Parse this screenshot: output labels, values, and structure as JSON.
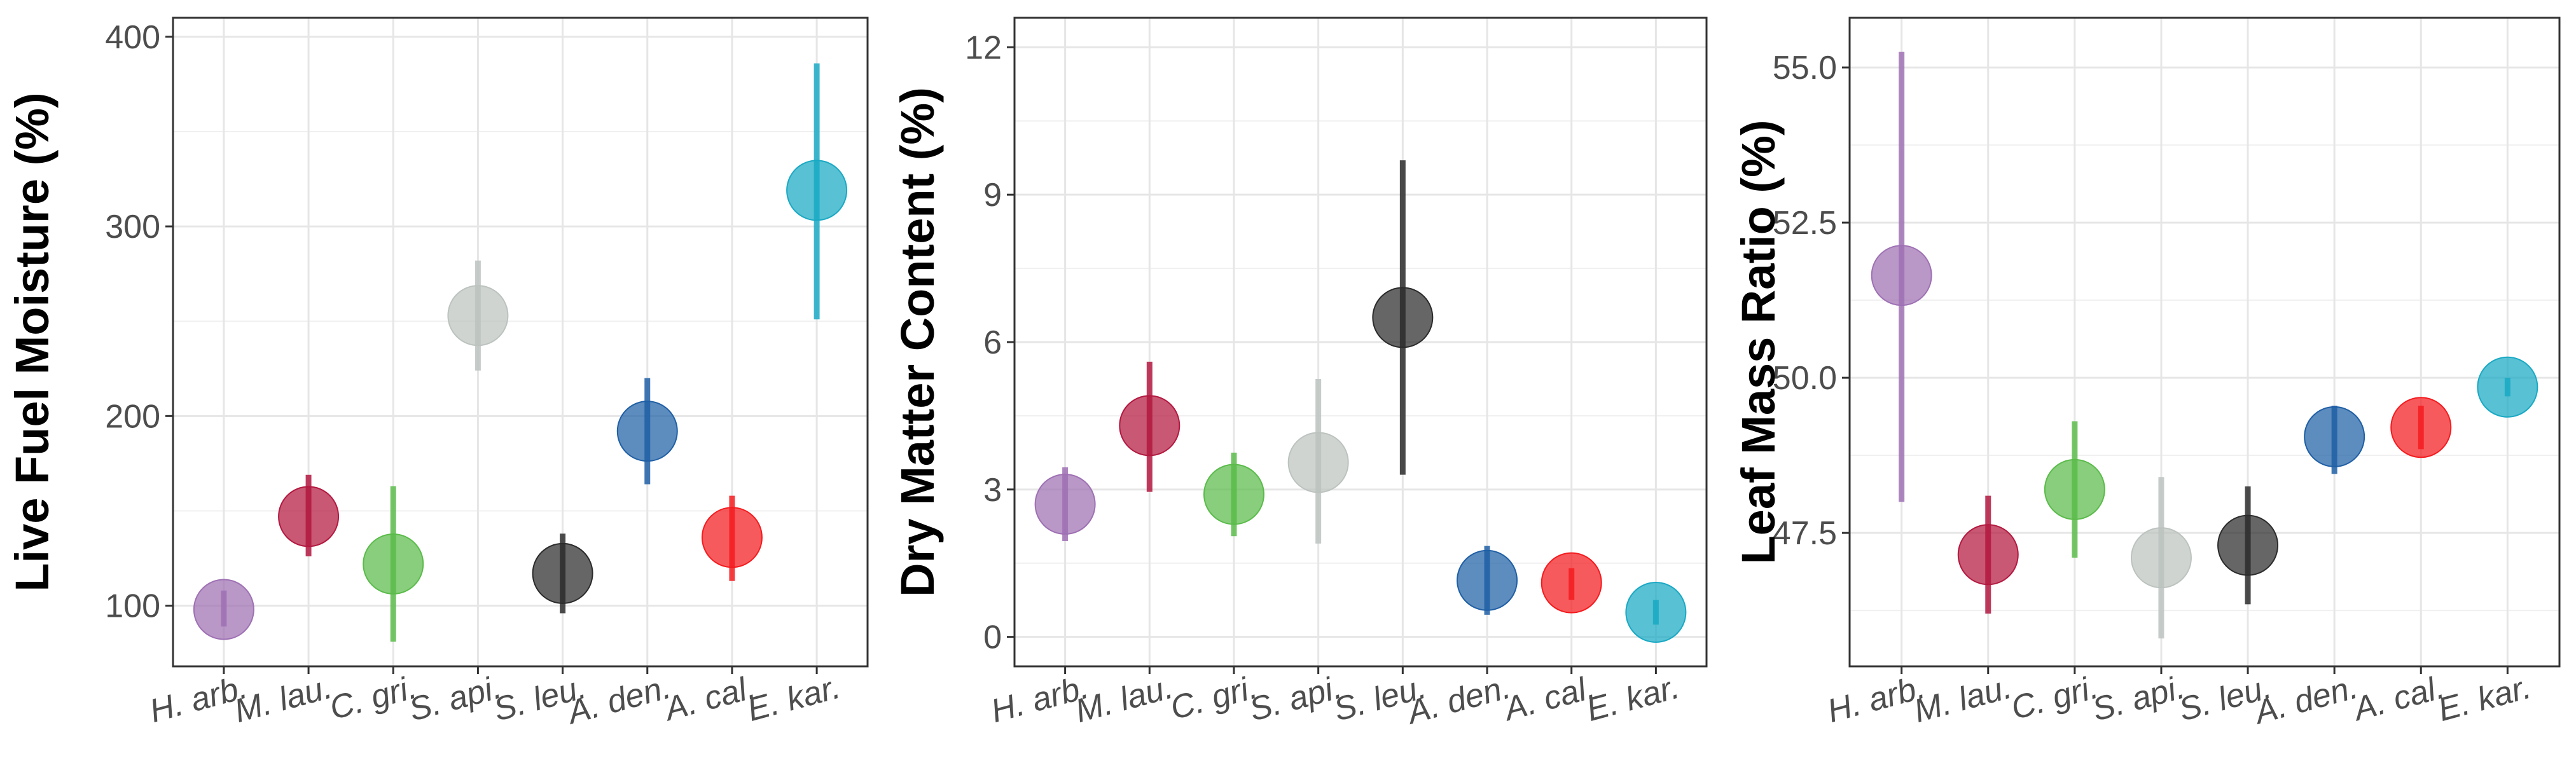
{
  "chart_data": [
    {
      "type": "scatter",
      "ylabel": "Live Fuel Moisture (%)",
      "xlabel": "",
      "categories": [
        "H. arb.",
        "M. lau.",
        "C. gri.",
        "S. api.",
        "S. leu.",
        "A. den.",
        "A. cal.",
        "E. kar."
      ],
      "values": [
        98,
        147,
        122,
        253,
        117,
        192,
        136,
        319
      ],
      "lower": [
        89,
        126,
        81,
        224,
        96,
        164,
        113,
        251
      ],
      "upper": [
        108,
        169,
        163,
        282,
        138,
        220,
        158,
        386
      ],
      "colors": [
        "#9e70b3",
        "#b3183f",
        "#5abb4a",
        "#bcc3bf",
        "#2b2b2b",
        "#1f5fa5",
        "#f41b1e",
        "#19a9c4"
      ],
      "yticks": [
        100,
        200,
        300,
        400
      ],
      "ylim": [
        68,
        410
      ],
      "grid": true,
      "legend": "none"
    },
    {
      "type": "scatter",
      "ylabel": "Dry Matter Content (%)",
      "xlabel": "",
      "categories": [
        "H. arb.",
        "M. lau.",
        "C. gri.",
        "S. api.",
        "S. leu.",
        "A. den.",
        "A. cal.",
        "E. kar."
      ],
      "values": [
        2.7,
        4.3,
        2.9,
        3.55,
        6.5,
        1.15,
        1.1,
        0.5
      ],
      "lower": [
        1.95,
        2.95,
        2.05,
        1.9,
        3.3,
        0.45,
        0.75,
        0.25
      ],
      "upper": [
        3.45,
        5.6,
        3.75,
        5.25,
        9.7,
        1.85,
        1.4,
        0.75
      ],
      "colors": [
        "#9e70b3",
        "#b3183f",
        "#5abb4a",
        "#bcc3bf",
        "#2b2b2b",
        "#1f5fa5",
        "#f41b1e",
        "#19a9c4"
      ],
      "yticks": [
        0,
        3,
        6,
        9,
        12
      ],
      "ylim": [
        -0.6,
        12.6
      ],
      "grid": true,
      "legend": "none"
    },
    {
      "type": "scatter",
      "ylabel": "Leaf Mass Ratio (%)",
      "xlabel": "",
      "categories": [
        "H. arb.",
        "M. lau.",
        "C. gri.",
        "S. api.",
        "S. leu.",
        "A. den.",
        "A. cal.",
        "E. kar."
      ],
      "values": [
        51.65,
        47.15,
        48.2,
        47.1,
        47.3,
        49.05,
        49.2,
        49.85
      ],
      "lower": [
        48.0,
        46.2,
        47.1,
        45.8,
        46.35,
        48.45,
        48.85,
        49.7
      ],
      "upper": [
        55.25,
        48.1,
        49.3,
        48.4,
        48.25,
        49.55,
        49.55,
        50.0
      ],
      "colors": [
        "#9e70b3",
        "#b3183f",
        "#5abb4a",
        "#bcc3bf",
        "#2b2b2b",
        "#1f5fa5",
        "#f41b1e",
        "#19a9c4"
      ],
      "yticks": [
        47.5,
        50.0,
        52.5,
        55.0
      ],
      "yticklabels": [
        "47.5",
        "50.0",
        "52.5",
        "55.0"
      ],
      "ylim": [
        45.35,
        55.8
      ],
      "grid": true,
      "legend": "none"
    }
  ]
}
